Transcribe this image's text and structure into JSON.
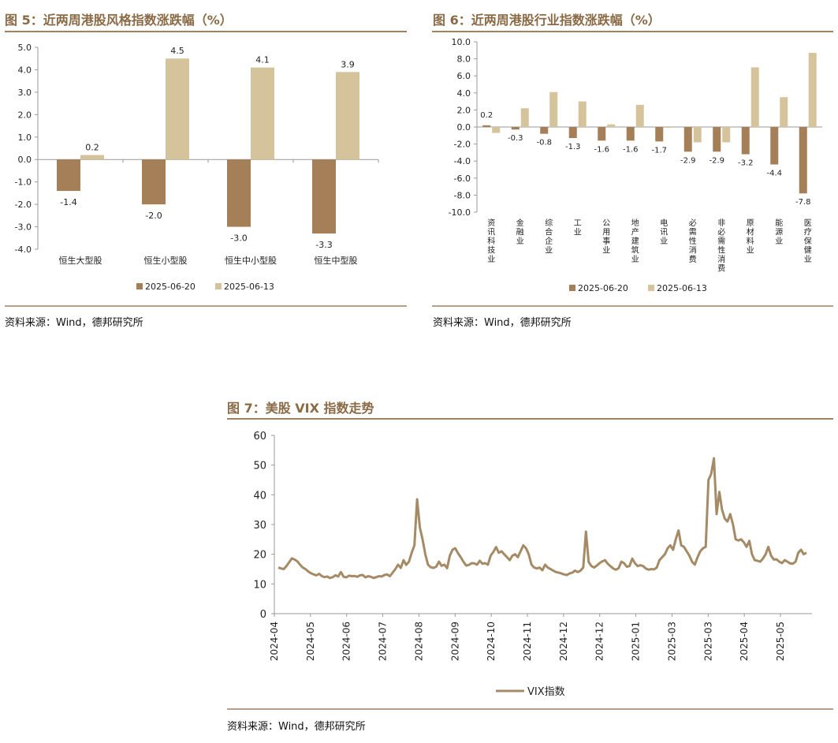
{
  "colors": {
    "dark": "#a47f58",
    "light": "#d5c39b",
    "rule": "#a08160",
    "title": "#8a6a45",
    "vix": "#a58a66"
  },
  "figures": [
    {
      "title": "图 5：近两周港股风格指数涨跌幅（%）",
      "source": "资料来源：Wind，德邦研究所"
    },
    {
      "title": "图 6：近两周港股行业指数涨跌幅（%）",
      "source": "资料来源：Wind，德邦研究所"
    },
    {
      "title": "图 7：美股 VIX 指数走势",
      "source": "资料来源：Wind，德邦研究所"
    }
  ],
  "chart_data": [
    {
      "type": "bar",
      "title": "近两周港股风格指数涨跌幅（%）",
      "categories": [
        "恒生大型股",
        "恒生小型股",
        "恒生中小型股",
        "恒生中型股"
      ],
      "series": [
        {
          "name": "2025-06-20",
          "values": [
            -1.4,
            -2.0,
            -3.0,
            -3.3
          ],
          "labels": [
            "-1.4",
            "-2.0",
            "-3.0",
            "-3.3"
          ]
        },
        {
          "name": "2025-06-13",
          "values": [
            0.2,
            4.5,
            4.1,
            3.9
          ],
          "labels": [
            "0.2",
            "4.5",
            "4.1",
            "3.9"
          ]
        }
      ],
      "ylim": [
        -4.0,
        5.0
      ],
      "yticks": [
        "5.0",
        "4.0",
        "3.0",
        "2.0",
        "1.0",
        "0.0",
        "-1.0",
        "-2.0",
        "-3.0",
        "-4.0"
      ],
      "legend": "bottom"
    },
    {
      "type": "bar",
      "title": "近两周港股行业指数涨跌幅（%）",
      "categories": [
        "资讯科技业",
        "金融业",
        "综合企业",
        "工业",
        "公用事业",
        "地产建筑业",
        "电讯业",
        "必需性消费",
        "非必需性消费",
        "原材料业",
        "能源业",
        "医疗保健业"
      ],
      "series": [
        {
          "name": "2025-06-20",
          "values": [
            0.2,
            -0.3,
            -0.8,
            -1.3,
            -1.6,
            -1.6,
            -1.7,
            -2.9,
            -2.9,
            -3.2,
            -4.4,
            -7.8
          ],
          "labels": [
            "0.2",
            "-0.3",
            "-0.8",
            "-1.3",
            "-1.6",
            "-1.6",
            "-1.7",
            "-2.9",
            "-2.9",
            "-3.2",
            "-4.4",
            "-7.8"
          ]
        },
        {
          "name": "2025-06-13",
          "values": [
            -0.7,
            2.2,
            4.1,
            3.0,
            0.3,
            2.6,
            -0.1,
            -1.8,
            -1.8,
            7.0,
            3.5,
            8.7
          ]
        }
      ],
      "ylim": [
        -10.0,
        10.0
      ],
      "yticks": [
        "10.0",
        "8.0",
        "6.0",
        "4.0",
        "2.0",
        "0.0",
        "-2.0",
        "-4.0",
        "-6.0",
        "-8.0",
        "-10.0"
      ],
      "legend": "bottom"
    },
    {
      "type": "line",
      "title": "美股 VIX 指数走势",
      "series": [
        {
          "name": "VIX指数"
        }
      ],
      "ylim": [
        0,
        60
      ],
      "yticks": [
        "60",
        "50",
        "40",
        "30",
        "20",
        "10",
        "0"
      ],
      "xticks": [
        "2024-04",
        "2024-05",
        "2024-06",
        "2024-07",
        "2024-08",
        "2024-09",
        "2024-10",
        "2024-11",
        "2024-12",
        "2024-12",
        "2025-01",
        "2025-03",
        "2025-03",
        "2025-04",
        "2025-05"
      ],
      "points": [
        [
          0,
          15.5
        ],
        [
          1,
          15.2
        ],
        [
          2,
          15.0
        ],
        [
          3,
          16.0
        ],
        [
          4,
          17.3
        ],
        [
          5,
          18.6
        ],
        [
          6,
          18.2
        ],
        [
          7,
          17.6
        ],
        [
          8,
          16.5
        ],
        [
          9,
          15.5
        ],
        [
          10,
          15.0
        ],
        [
          11,
          14.2
        ],
        [
          12,
          13.6
        ],
        [
          13,
          13.2
        ],
        [
          14,
          12.9
        ],
        [
          15,
          13.4
        ],
        [
          16,
          12.6
        ],
        [
          17,
          12.3
        ],
        [
          18,
          12.5
        ],
        [
          19,
          12.0
        ],
        [
          20,
          12.3
        ],
        [
          21,
          12.9
        ],
        [
          22,
          12.5
        ],
        [
          23,
          14.0
        ],
        [
          24,
          12.4
        ],
        [
          25,
          12.2
        ],
        [
          26,
          12.8
        ],
        [
          27,
          12.6
        ],
        [
          28,
          12.7
        ],
        [
          29,
          12.4
        ],
        [
          30,
          12.9
        ],
        [
          31,
          13.0
        ],
        [
          32,
          12.2
        ],
        [
          33,
          12.6
        ],
        [
          34,
          12.4
        ],
        [
          35,
          12.0
        ],
        [
          36,
          12.3
        ],
        [
          37,
          12.6
        ],
        [
          38,
          12.5
        ],
        [
          39,
          13.0
        ],
        [
          40,
          13.2
        ],
        [
          41,
          12.6
        ],
        [
          42,
          13.8
        ],
        [
          43,
          15.0
        ],
        [
          44,
          16.5
        ],
        [
          45,
          15.4
        ],
        [
          46,
          18.0
        ],
        [
          47,
          16.4
        ],
        [
          48,
          17.5
        ],
        [
          49,
          20.5
        ],
        [
          50,
          23.0
        ],
        [
          51,
          38.5
        ],
        [
          52,
          29.0
        ],
        [
          53,
          25.0
        ],
        [
          54,
          20.0
        ],
        [
          55,
          16.5
        ],
        [
          56,
          15.6
        ],
        [
          57,
          15.4
        ],
        [
          58,
          15.8
        ],
        [
          59,
          17.5
        ],
        [
          60,
          16.1
        ],
        [
          61,
          16.5
        ],
        [
          62,
          15.3
        ],
        [
          63,
          19.5
        ],
        [
          64,
          21.5
        ],
        [
          65,
          22.0
        ],
        [
          66,
          20.4
        ],
        [
          67,
          19.0
        ],
        [
          68,
          17.5
        ],
        [
          69,
          16.2
        ],
        [
          70,
          16.4
        ],
        [
          71,
          17.0
        ],
        [
          72,
          16.9
        ],
        [
          73,
          16.5
        ],
        [
          74,
          17.8
        ],
        [
          75,
          16.8
        ],
        [
          76,
          17.0
        ],
        [
          77,
          16.5
        ],
        [
          78,
          19.5
        ],
        [
          79,
          20.8
        ],
        [
          80,
          22.4
        ],
        [
          81,
          20.5
        ],
        [
          82,
          21.0
        ],
        [
          83,
          20.0
        ],
        [
          84,
          19.0
        ],
        [
          85,
          18.0
        ],
        [
          86,
          19.5
        ],
        [
          87,
          20.0
        ],
        [
          88,
          19.0
        ],
        [
          89,
          21.0
        ],
        [
          90,
          23.0
        ],
        [
          91,
          22.0
        ],
        [
          92,
          20.0
        ],
        [
          93,
          16.5
        ],
        [
          94,
          15.5
        ],
        [
          95,
          15.2
        ],
        [
          96,
          15.5
        ],
        [
          97,
          14.6
        ],
        [
          98,
          16.5
        ],
        [
          99,
          15.5
        ],
        [
          100,
          15.0
        ],
        [
          101,
          14.5
        ],
        [
          102,
          14.0
        ],
        [
          103,
          13.8
        ],
        [
          104,
          13.5
        ],
        [
          105,
          13.2
        ],
        [
          106,
          13.0
        ],
        [
          107,
          13.5
        ],
        [
          108,
          13.8
        ],
        [
          109,
          14.5
        ],
        [
          110,
          14.0
        ],
        [
          111,
          14.5
        ],
        [
          112,
          15.5
        ],
        [
          113,
          27.6
        ],
        [
          114,
          17.4
        ],
        [
          115,
          16.0
        ],
        [
          116,
          15.5
        ],
        [
          117,
          16.2
        ],
        [
          118,
          17.0
        ],
        [
          119,
          17.6
        ],
        [
          120,
          18.0
        ],
        [
          121,
          16.8
        ],
        [
          122,
          16.0
        ],
        [
          123,
          15.2
        ],
        [
          124,
          14.8
        ],
        [
          125,
          15.3
        ],
        [
          126,
          17.5
        ],
        [
          127,
          17.0
        ],
        [
          128,
          15.8
        ],
        [
          129,
          16.0
        ],
        [
          130,
          18.5
        ],
        [
          131,
          17.0
        ],
        [
          132,
          16.0
        ],
        [
          133,
          16.3
        ],
        [
          134,
          16.0
        ],
        [
          135,
          15.2
        ],
        [
          136,
          14.8
        ],
        [
          137,
          15.0
        ],
        [
          138,
          14.9
        ],
        [
          139,
          15.5
        ],
        [
          140,
          18.0
        ],
        [
          141,
          19.0
        ],
        [
          142,
          20.0
        ],
        [
          143,
          22.0
        ],
        [
          144,
          23.0
        ],
        [
          145,
          21.5
        ],
        [
          146,
          25.0
        ],
        [
          147,
          28.0
        ],
        [
          148,
          23.0
        ],
        [
          149,
          22.5
        ],
        [
          150,
          21.0
        ],
        [
          151,
          19.5
        ],
        [
          152,
          17.5
        ],
        [
          153,
          16.5
        ],
        [
          154,
          19.0
        ],
        [
          155,
          21.0
        ],
        [
          156,
          22.0
        ],
        [
          157,
          22.5
        ],
        [
          158,
          45.0
        ],
        [
          159,
          47.0
        ],
        [
          160,
          52.3
        ],
        [
          161,
          33.5
        ],
        [
          162,
          41.0
        ],
        [
          163,
          35.0
        ],
        [
          164,
          32.0
        ],
        [
          165,
          31.0
        ],
        [
          166,
          33.5
        ],
        [
          167,
          30.0
        ],
        [
          168,
          25.0
        ],
        [
          169,
          24.6
        ],
        [
          170,
          25.0
        ],
        [
          171,
          24.0
        ],
        [
          172,
          22.5
        ],
        [
          173,
          24.5
        ],
        [
          174,
          20.0
        ],
        [
          175,
          18.0
        ],
        [
          176,
          17.8
        ],
        [
          177,
          17.5
        ],
        [
          178,
          18.5
        ],
        [
          179,
          20.0
        ],
        [
          180,
          22.5
        ],
        [
          181,
          19.5
        ],
        [
          182,
          18.2
        ],
        [
          183,
          18.3
        ],
        [
          184,
          17.5
        ],
        [
          185,
          17.0
        ],
        [
          186,
          18.0
        ],
        [
          187,
          17.5
        ],
        [
          188,
          16.9
        ],
        [
          189,
          16.8
        ],
        [
          190,
          17.5
        ],
        [
          191,
          20.5
        ],
        [
          192,
          21.5
        ],
        [
          193,
          20.0
        ],
        [
          194,
          20.5
        ]
      ],
      "legend": "bottom"
    }
  ]
}
